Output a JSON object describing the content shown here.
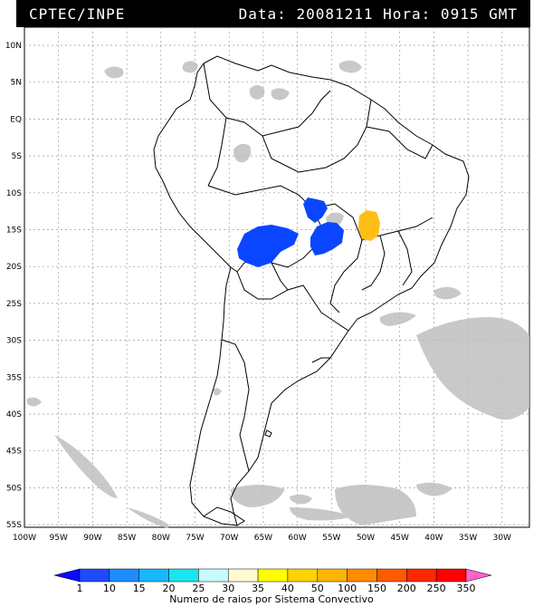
{
  "header": {
    "source": "CPTEC/INPE",
    "datetime": "Data: 20081211 Hora: 0915 GMT"
  },
  "axes": {
    "lat_labels": [
      "10N",
      "5N",
      "EQ",
      "5S",
      "10S",
      "15S",
      "20S",
      "25S",
      "30S",
      "35S",
      "40S",
      "45S",
      "50S",
      "55S"
    ],
    "lon_labels": [
      "100W",
      "95W",
      "90W",
      "85W",
      "80W",
      "75W",
      "70W",
      "65W",
      "60W",
      "55W",
      "50W",
      "45W",
      "40W",
      "35W",
      "30W"
    ]
  },
  "colorbar": {
    "title": "Numero de raios por Sistema Convectivo",
    "labels": [
      "1",
      "10",
      "15",
      "20",
      "25",
      "30",
      "35",
      "40",
      "50",
      "100",
      "150",
      "200",
      "250",
      "350"
    ],
    "colors": [
      "#0a0aff",
      "#1e4bff",
      "#1e8cff",
      "#14b9ff",
      "#19e6f0",
      "#c8fafa",
      "#fffad2",
      "#ffff00",
      "#ffd200",
      "#ffb400",
      "#ff8c00",
      "#ff5a00",
      "#ff2800",
      "#ff0000",
      "#ff64c8"
    ]
  },
  "legend_colors": {
    "frame": "#000000",
    "clouds": "#bfbfbf",
    "convective_blue": "#0a46ff",
    "convective_orange": "#ffbe14"
  }
}
